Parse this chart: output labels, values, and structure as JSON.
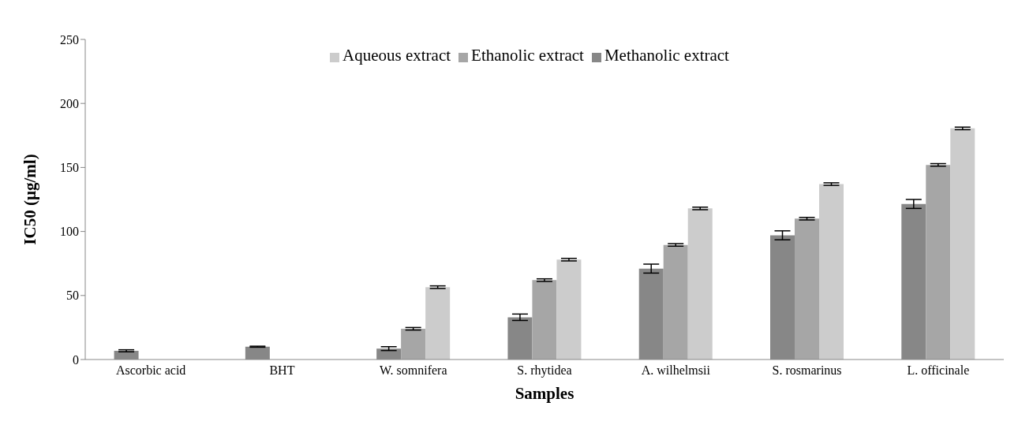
{
  "chart_data": {
    "type": "bar",
    "xlabel": "Samples",
    "ylabel": "IC50 (µg/ml)",
    "categories": [
      "Ascorbic acid",
      "BHT",
      "W. somnifera",
      "S. rhytidea",
      "A. wilhelmsii",
      "S. rosmarinus",
      "L. officinale"
    ],
    "series": [
      {
        "name": "Methanolic extract",
        "color": "#878787",
        "values": [
          6.8,
          10,
          8.5,
          33,
          71,
          97,
          121.5
        ],
        "errors": [
          0.8,
          0.4,
          1.5,
          2.5,
          3.5,
          3.5,
          3.5
        ]
      },
      {
        "name": "Ethanolic extract",
        "color": "#a6a6a6",
        "values": [
          null,
          null,
          24,
          62,
          89.5,
          110,
          152
        ],
        "errors": [
          null,
          null,
          1,
          1,
          1,
          1,
          1
        ]
      },
      {
        "name": "Aqueous extract",
        "color": "#cccccc",
        "values": [
          null,
          null,
          56.5,
          78,
          118,
          137,
          180.5
        ],
        "errors": [
          null,
          null,
          1,
          1,
          1,
          1,
          1
        ]
      }
    ],
    "ylim": [
      0,
      250
    ],
    "yticks": [
      0,
      50,
      100,
      150,
      200,
      250
    ],
    "grid": false,
    "legend": "top"
  }
}
